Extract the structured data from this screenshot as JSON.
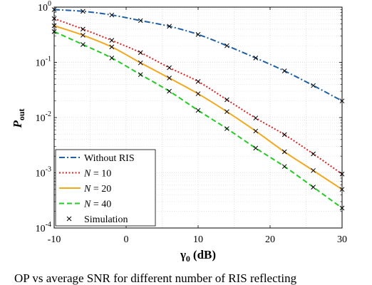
{
  "chart_data": {
    "type": "line",
    "xlabel_main": "γ",
    "xlabel_sub": "0",
    "xlabel_unit": "(dB)",
    "ylabel_main": "P",
    "ylabel_sub": "out",
    "x_ticks": [
      "-10",
      "0",
      "10",
      "20",
      "30"
    ],
    "y_ticks": [
      {
        "base": "10",
        "exp": "0",
        "value": 1
      },
      {
        "base": "10",
        "exp": "-1",
        "value": 0.1
      },
      {
        "base": "10",
        "exp": "-2",
        "value": 0.01
      },
      {
        "base": "10",
        "exp": "-3",
        "value": 0.001
      },
      {
        "base": "10",
        "exp": "-4",
        "value": 0.0001
      }
    ],
    "xlim": [
      -10,
      30
    ],
    "ylim": [
      0.0001,
      1
    ],
    "yscale": "log",
    "grid": true,
    "legend_position": "bottom-left",
    "series": [
      {
        "name": "Without RIS",
        "color": "#1f5fa8",
        "style": "dashdot",
        "x": [
          -10,
          -6,
          -2,
          2,
          6,
          10,
          14,
          18,
          22,
          26,
          30
        ],
        "y": [
          0.9,
          0.84,
          0.72,
          0.57,
          0.45,
          0.32,
          0.2,
          0.12,
          0.07,
          0.038,
          0.02
        ]
      },
      {
        "name": "N = 10",
        "color": "#e02020",
        "style": "dotted",
        "x": [
          -10,
          -6,
          -2,
          2,
          6,
          10,
          14,
          18,
          22,
          26,
          30
        ],
        "y": [
          0.62,
          0.4,
          0.25,
          0.15,
          0.08,
          0.045,
          0.021,
          0.0098,
          0.0049,
          0.0022,
          0.00095
        ]
      },
      {
        "name": "N = 20",
        "color": "#f2a81d",
        "style": "solid",
        "x": [
          -10,
          -6,
          -2,
          2,
          6,
          10,
          14,
          18,
          22,
          26,
          30
        ],
        "y": [
          0.46,
          0.31,
          0.19,
          0.098,
          0.052,
          0.027,
          0.0128,
          0.0057,
          0.0024,
          0.0011,
          0.0005
        ]
      },
      {
        "name": "N = 40",
        "color": "#22cc22",
        "style": "dashed",
        "x": [
          -10,
          -6,
          -2,
          2,
          6,
          10,
          14,
          18,
          22,
          26,
          30
        ],
        "y": [
          0.36,
          0.21,
          0.12,
          0.06,
          0.03,
          0.0135,
          0.0063,
          0.0028,
          0.0013,
          0.00055,
          0.00023
        ]
      },
      {
        "name": "Simulation",
        "color": "#000000",
        "style": "markers-x"
      }
    ]
  },
  "caption": "OP vs average SNR for different number of RIS reflecting"
}
